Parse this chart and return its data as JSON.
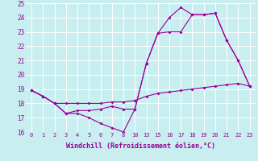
{
  "title": "",
  "xlabel": "Windchill (Refroidissement éolien,°C)",
  "ylabel": "",
  "bg_color": "#c8eef0",
  "line_color": "#990099",
  "grid_color": "#ffffff",
  "ylim": [
    16,
    25
  ],
  "yticks": [
    16,
    17,
    18,
    19,
    20,
    21,
    22,
    23,
    24,
    25
  ],
  "xtick_labels": [
    "0",
    "1",
    "2",
    "3",
    "4",
    "5",
    "6",
    "7",
    "8",
    "10",
    "13",
    "15",
    "16",
    "17",
    "18",
    "19",
    "20",
    "21",
    "22",
    "23"
  ],
  "series": [
    {
      "xi": [
        0,
        1,
        2,
        3,
        4,
        5,
        6,
        7,
        8,
        9,
        10,
        11,
        12,
        13,
        14,
        15,
        16,
        17,
        18,
        19
      ],
      "y": [
        18.9,
        18.5,
        18.0,
        17.3,
        17.3,
        17.0,
        16.6,
        16.3,
        16.0,
        17.6,
        20.8,
        22.9,
        24.0,
        24.7,
        24.2,
        24.2,
        24.3,
        22.4,
        21.0,
        19.2
      ]
    },
    {
      "xi": [
        0,
        1,
        2,
        3,
        4,
        5,
        6,
        7,
        8,
        9,
        10,
        11,
        12,
        13,
        14,
        15,
        16,
        17,
        18,
        19
      ],
      "y": [
        18.9,
        18.5,
        18.0,
        17.3,
        17.5,
        17.5,
        17.6,
        17.8,
        17.6,
        17.6,
        20.8,
        22.9,
        23.0,
        23.0,
        24.2,
        24.2,
        24.3,
        22.4,
        21.0,
        19.2
      ]
    },
    {
      "xi": [
        0,
        1,
        2,
        3,
        4,
        5,
        6,
        7,
        8,
        9,
        10,
        11,
        12,
        13,
        14,
        15,
        16,
        17,
        18,
        19
      ],
      "y": [
        18.9,
        18.5,
        18.0,
        18.0,
        18.0,
        18.0,
        18.0,
        18.1,
        18.1,
        18.2,
        18.5,
        18.7,
        18.8,
        18.9,
        19.0,
        19.1,
        19.2,
        19.3,
        19.4,
        19.2
      ]
    }
  ]
}
